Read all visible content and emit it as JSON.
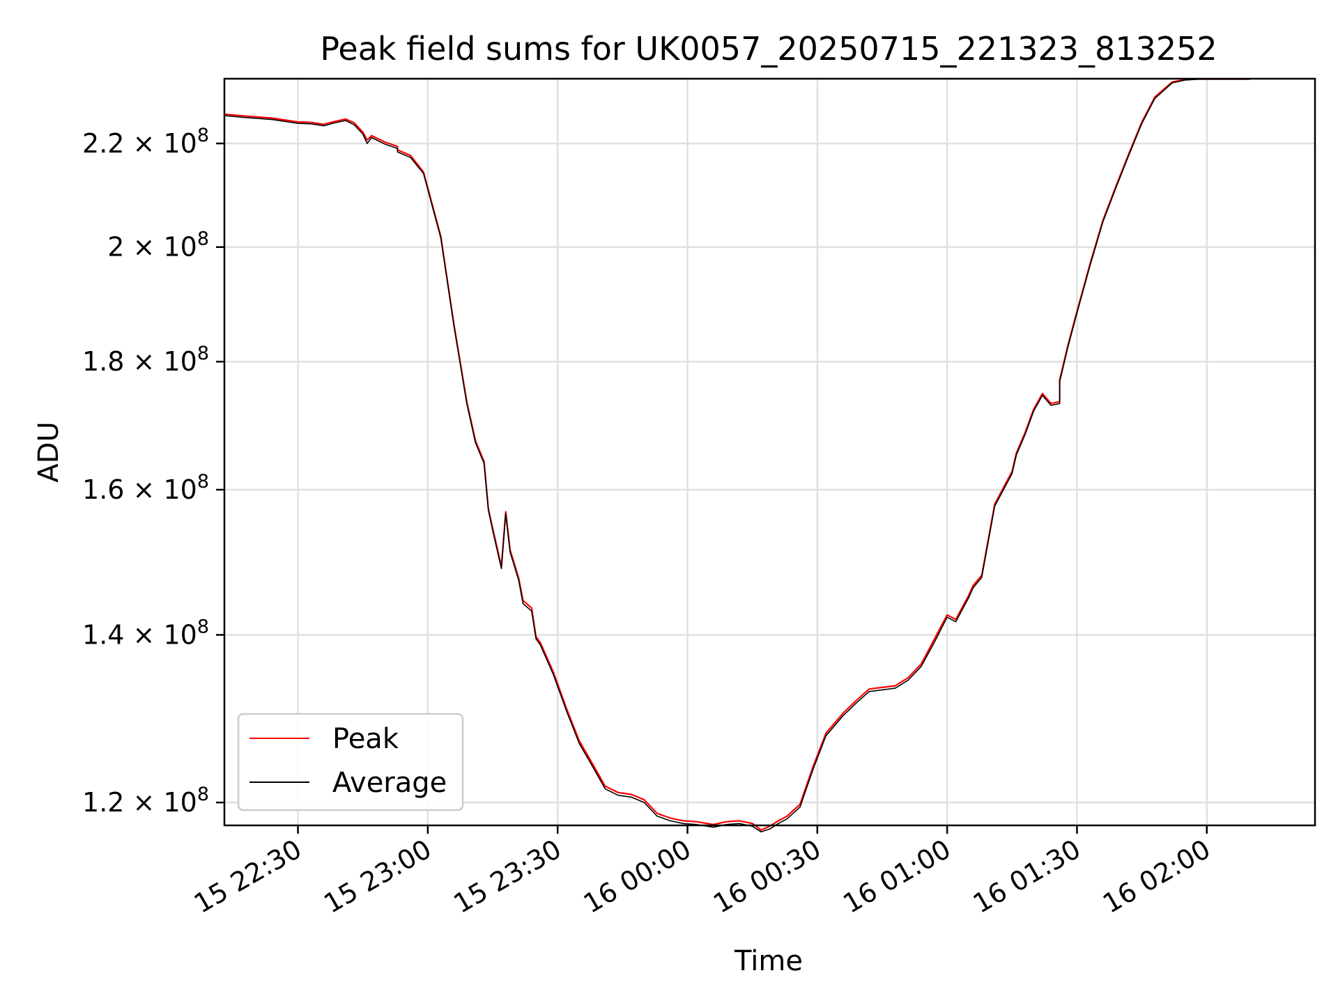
{
  "chart_data": {
    "type": "line",
    "title": "Peak field sums for UK0057_20250715_221323_813252",
    "xlabel": "Time",
    "ylabel": "ADU",
    "yscale": "log",
    "grid": true,
    "legend_position": "lower-left",
    "x_tick_labels": [
      "15 22:30",
      "15 23:00",
      "15 23:30",
      "16 00:00",
      "16 00:30",
      "16 01:00",
      "16 01:30",
      "16 02:00"
    ],
    "y_ticks": [
      {
        "value": 120000000,
        "mantissa": "1.2",
        "exp": "8"
      },
      {
        "value": 140000000,
        "mantissa": "1.4",
        "exp": "8"
      },
      {
        "value": 160000000,
        "mantissa": "1.6",
        "exp": "8"
      },
      {
        "value": 180000000,
        "mantissa": "1.8",
        "exp": "8"
      },
      {
        "value": 200000000,
        "mantissa": "2",
        "exp": "8"
      },
      {
        "value": 220000000,
        "mantissa": "2.2",
        "exp": "8"
      }
    ],
    "xlim": [
      "2025-07-15 22:13",
      "2025-07-16 02:25"
    ],
    "ylim": [
      117500000,
      233500000
    ],
    "series": [
      {
        "name": "Peak",
        "color": "#ff0000",
        "x": [
          "2025-07-15 22:13",
          "2025-07-15 22:18",
          "2025-07-15 22:24",
          "2025-07-15 22:30",
          "2025-07-15 22:33",
          "2025-07-15 22:36",
          "2025-07-15 22:38",
          "2025-07-15 22:41",
          "2025-07-15 22:43",
          "2025-07-15 22:45",
          "2025-07-15 22:46",
          "2025-07-15 22:47",
          "2025-07-15 22:50",
          "2025-07-15 22:53",
          "2025-07-15 22:53",
          "2025-07-15 22:56",
          "2025-07-15 22:59",
          "2025-07-15 23:03",
          "2025-07-15 23:06",
          "2025-07-15 23:09",
          "2025-07-15 23:11",
          "2025-07-15 23:13",
          "2025-07-15 23:14",
          "2025-07-15 23:15",
          "2025-07-15 23:17",
          "2025-07-15 23:18",
          "2025-07-15 23:19",
          "2025-07-15 23:21",
          "2025-07-15 23:22",
          "2025-07-15 23:24",
          "2025-07-15 23:25",
          "2025-07-15 23:26",
          "2025-07-15 23:29",
          "2025-07-15 23:32",
          "2025-07-15 23:35",
          "2025-07-15 23:38",
          "2025-07-15 23:41",
          "2025-07-15 23:44",
          "2025-07-15 23:47",
          "2025-07-15 23:50",
          "2025-07-15 23:53",
          "2025-07-15 23:56",
          "2025-07-15 23:59",
          "2025-07-16 00:02",
          "2025-07-16 00:06",
          "2025-07-16 00:09",
          "2025-07-16 00:12",
          "2025-07-16 00:15",
          "2025-07-16 00:17",
          "2025-07-16 00:19",
          "2025-07-16 00:21",
          "2025-07-16 00:23",
          "2025-07-16 00:26",
          "2025-07-16 00:29",
          "2025-07-16 00:32",
          "2025-07-16 00:36",
          "2025-07-16 00:39",
          "2025-07-16 00:42",
          "2025-07-16 00:45",
          "2025-07-16 00:48",
          "2025-07-16 00:51",
          "2025-07-16 00:54",
          "2025-07-16 00:57",
          "2025-07-16 01:00",
          "2025-07-16 01:02",
          "2025-07-16 01:05",
          "2025-07-16 01:06",
          "2025-07-16 01:08",
          "2025-07-16 01:11",
          "2025-07-16 01:15",
          "2025-07-16 01:16",
          "2025-07-16 01:18",
          "2025-07-16 01:20",
          "2025-07-16 01:22",
          "2025-07-16 01:24",
          "2025-07-16 01:26",
          "2025-07-16 01:26",
          "2025-07-16 01:28",
          "2025-07-16 01:30",
          "2025-07-16 01:33",
          "2025-07-16 01:36",
          "2025-07-16 01:39",
          "2025-07-16 01:42",
          "2025-07-16 01:45",
          "2025-07-16 01:48",
          "2025-07-16 01:52",
          "2025-07-16 01:55",
          "2025-07-16 01:58",
          "2025-07-16 02:01",
          "2025-07-16 02:05",
          "2025-07-16 02:10"
        ],
        "values": [
          226000000,
          225600000,
          225200000,
          224400000,
          224300000,
          223900000,
          224400000,
          225000000,
          224200000,
          222300000,
          220700000,
          221600000,
          220300000,
          219400000,
          218700000,
          217600000,
          214300000,
          202000000,
          186500000,
          173500000,
          167400000,
          164200000,
          157200000,
          154400000,
          149100000,
          156800000,
          151400000,
          147500000,
          144500000,
          143500000,
          139800000,
          139000000,
          135300000,
          130900000,
          127000000,
          124400000,
          121800000,
          121100000,
          120900000,
          120300000,
          118800000,
          118300000,
          118000000,
          117900000,
          117600000,
          117900000,
          118000000,
          117700000,
          117000000,
          117400000,
          118000000,
          118500000,
          119800000,
          124000000,
          127900000,
          130300000,
          131800000,
          133200000,
          133400000,
          133600000,
          134600000,
          136300000,
          139400000,
          142600000,
          142000000,
          145200000,
          146500000,
          147900000,
          157900000,
          162700000,
          165500000,
          168600000,
          172300000,
          174800000,
          173200000,
          173500000,
          177000000,
          183000000,
          188500000,
          196900000,
          205000000,
          211500000,
          218000000,
          224400000,
          229600000,
          232800000,
          233300000,
          233400000,
          233400000,
          233400000,
          233400000
        ]
      },
      {
        "name": "Average",
        "color": "#000000",
        "x": [
          "2025-07-15 22:13",
          "2025-07-15 22:18",
          "2025-07-15 22:24",
          "2025-07-15 22:30",
          "2025-07-15 22:33",
          "2025-07-15 22:36",
          "2025-07-15 22:38",
          "2025-07-15 22:41",
          "2025-07-15 22:43",
          "2025-07-15 22:45",
          "2025-07-15 22:46",
          "2025-07-15 22:47",
          "2025-07-15 22:50",
          "2025-07-15 22:53",
          "2025-07-15 22:53",
          "2025-07-15 22:56",
          "2025-07-15 22:59",
          "2025-07-15 23:03",
          "2025-07-15 23:06",
          "2025-07-15 23:09",
          "2025-07-15 23:11",
          "2025-07-15 23:13",
          "2025-07-15 23:14",
          "2025-07-15 23:15",
          "2025-07-15 23:17",
          "2025-07-15 23:18",
          "2025-07-15 23:19",
          "2025-07-15 23:21",
          "2025-07-15 23:22",
          "2025-07-15 23:24",
          "2025-07-15 23:25",
          "2025-07-15 23:26",
          "2025-07-15 23:29",
          "2025-07-15 23:32",
          "2025-07-15 23:35",
          "2025-07-15 23:38",
          "2025-07-15 23:41",
          "2025-07-15 23:44",
          "2025-07-15 23:47",
          "2025-07-15 23:50",
          "2025-07-15 23:53",
          "2025-07-15 23:56",
          "2025-07-15 23:59",
          "2025-07-16 00:02",
          "2025-07-16 00:06",
          "2025-07-16 00:09",
          "2025-07-16 00:12",
          "2025-07-16 00:15",
          "2025-07-16 00:17",
          "2025-07-16 00:19",
          "2025-07-16 00:21",
          "2025-07-16 00:23",
          "2025-07-16 00:26",
          "2025-07-16 00:29",
          "2025-07-16 00:32",
          "2025-07-16 00:36",
          "2025-07-16 00:39",
          "2025-07-16 00:42",
          "2025-07-16 00:45",
          "2025-07-16 00:48",
          "2025-07-16 00:51",
          "2025-07-16 00:54",
          "2025-07-16 00:57",
          "2025-07-16 01:00",
          "2025-07-16 01:02",
          "2025-07-16 01:05",
          "2025-07-16 01:06",
          "2025-07-16 01:08",
          "2025-07-16 01:11",
          "2025-07-16 01:15",
          "2025-07-16 01:16",
          "2025-07-16 01:18",
          "2025-07-16 01:20",
          "2025-07-16 01:22",
          "2025-07-16 01:24",
          "2025-07-16 01:26",
          "2025-07-16 01:26",
          "2025-07-16 01:28",
          "2025-07-16 01:30",
          "2025-07-16 01:33",
          "2025-07-16 01:36",
          "2025-07-16 01:39",
          "2025-07-16 01:42",
          "2025-07-16 01:45",
          "2025-07-16 01:48",
          "2025-07-16 01:52",
          "2025-07-16 01:55",
          "2025-07-16 01:58",
          "2025-07-16 02:01",
          "2025-07-16 02:05",
          "2025-07-16 02:10"
        ],
        "values": [
          225700000,
          225300000,
          224900000,
          224100000,
          224000000,
          223600000,
          224100000,
          224700000,
          223800000,
          221900000,
          220000000,
          221200000,
          219900000,
          219000000,
          218300000,
          217200000,
          214000000,
          201700000,
          186200000,
          173200000,
          167100000,
          163900000,
          157000000,
          154100000,
          148800000,
          156500000,
          151100000,
          147200000,
          144100000,
          143100000,
          139500000,
          138700000,
          135000000,
          130600000,
          126700000,
          124100000,
          121500000,
          120800000,
          120600000,
          120000000,
          118500000,
          118000000,
          117700000,
          117600000,
          117300000,
          117600000,
          117700000,
          117400000,
          116800000,
          117100000,
          117700000,
          118200000,
          119500000,
          123700000,
          127600000,
          130000000,
          131500000,
          132900000,
          133100000,
          133300000,
          134300000,
          136000000,
          139000000,
          142300000,
          141700000,
          144900000,
          146200000,
          147600000,
          157600000,
          162400000,
          165200000,
          168300000,
          172000000,
          174500000,
          172900000,
          173200000,
          176700000,
          182700000,
          188200000,
          196600000,
          204700000,
          211200000,
          217700000,
          224100000,
          229300000,
          232600000,
          233200000,
          233400000,
          233400000,
          233400000,
          233400000
        ]
      }
    ]
  }
}
